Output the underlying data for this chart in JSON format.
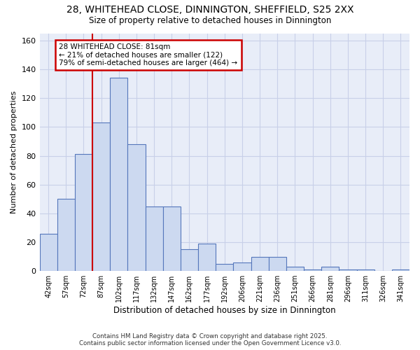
{
  "title_line1": "28, WHITEHEAD CLOSE, DINNINGTON, SHEFFIELD, S25 2XX",
  "title_line2": "Size of property relative to detached houses in Dinnington",
  "xlabel": "Distribution of detached houses by size in Dinnington",
  "ylabel": "Number of detached properties",
  "bar_color": "#ccd9f0",
  "bar_edge_color": "#5577bb",
  "categories": [
    "42sqm",
    "57sqm",
    "72sqm",
    "87sqm",
    "102sqm",
    "117sqm",
    "132sqm",
    "147sqm",
    "162sqm",
    "177sqm",
    "192sqm",
    "206sqm",
    "221sqm",
    "236sqm",
    "251sqm",
    "266sqm",
    "281sqm",
    "296sqm",
    "311sqm",
    "326sqm",
    "341sqm"
  ],
  "values": [
    26,
    50,
    81,
    103,
    134,
    88,
    45,
    45,
    15,
    19,
    5,
    6,
    10,
    10,
    3,
    1,
    3,
    1,
    1,
    0,
    1
  ],
  "ylim": [
    0,
    165
  ],
  "yticks": [
    0,
    20,
    40,
    60,
    80,
    100,
    120,
    140,
    160
  ],
  "vline_x": 2.5,
  "annotation_text": "28 WHITEHEAD CLOSE: 81sqm\n← 21% of detached houses are smaller (122)\n79% of semi-detached houses are larger (464) →",
  "annotation_box_color": "#ffffff",
  "annotation_box_edge": "#cc0000",
  "vline_color": "#cc0000",
  "grid_color": "#c8d0e8",
  "plot_bg_color": "#e8edf8",
  "fig_bg_color": "#ffffff",
  "footer_line1": "Contains HM Land Registry data © Crown copyright and database right 2025.",
  "footer_line2": "Contains public sector information licensed under the Open Government Licence v3.0."
}
